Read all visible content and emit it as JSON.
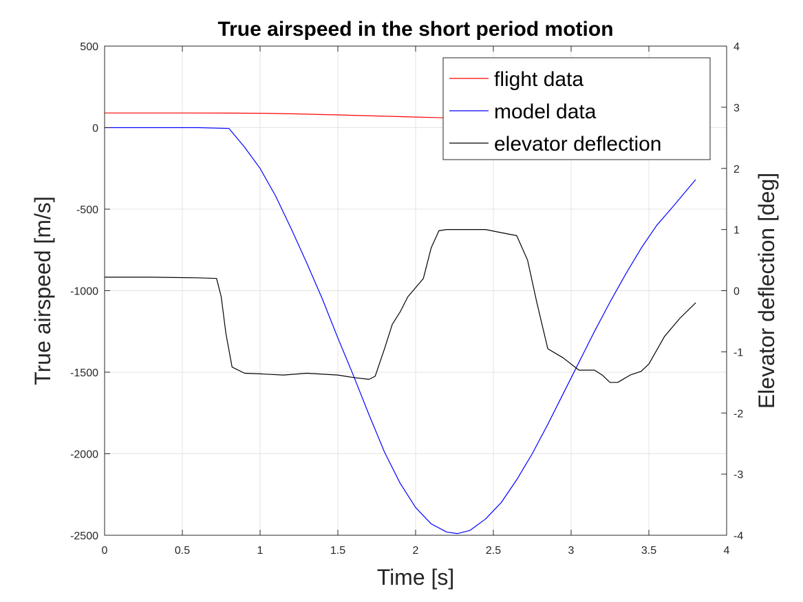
{
  "chart_data": {
    "type": "line",
    "title": "True airspeed in the short period motion",
    "xlabel": "Time [s]",
    "ylabel": "True airspeed [m/s]",
    "y2label": "Elevator deflection [deg]",
    "xlim": [
      0,
      4
    ],
    "ylim": [
      -2500,
      500
    ],
    "y2lim": [
      -4,
      4
    ],
    "xticks": [
      "0",
      "0.5",
      "1",
      "1.5",
      "2",
      "2.5",
      "3",
      "3.5",
      "4"
    ],
    "xtick_values": [
      0,
      0.5,
      1,
      1.5,
      2,
      2.5,
      3,
      3.5,
      4
    ],
    "yticks": [
      "500",
      "0",
      "-500",
      "-1000",
      "-1500",
      "-2000",
      "-2500"
    ],
    "ytick_values": [
      500,
      0,
      -500,
      -1000,
      -1500,
      -2000,
      -2500
    ],
    "y2ticks": [
      "4",
      "3",
      "2",
      "1",
      "0",
      "-1",
      "-2",
      "-3",
      "-4"
    ],
    "y2tick_values": [
      4,
      3,
      2,
      1,
      0,
      -1,
      -2,
      -3,
      -4
    ],
    "grid": true,
    "legend_position": "top-right",
    "series": [
      {
        "name": "flight data",
        "color": "#ff0000",
        "axis": "left",
        "x": [
          0,
          0.5,
          0.8,
          1.0,
          1.2,
          1.5,
          1.8,
          2.0,
          2.2
        ],
        "y": [
          90,
          90,
          89,
          88,
          85,
          78,
          70,
          65,
          60
        ]
      },
      {
        "name": "model data",
        "color": "#0000ff",
        "axis": "left",
        "x": [
          0,
          0.6,
          0.8,
          0.9,
          1.0,
          1.1,
          1.2,
          1.3,
          1.4,
          1.5,
          1.6,
          1.7,
          1.8,
          1.9,
          2.0,
          2.1,
          2.2,
          2.27,
          2.35,
          2.45,
          2.55,
          2.65,
          2.75,
          2.85,
          2.95,
          3.05,
          3.15,
          3.25,
          3.35,
          3.45,
          3.55,
          3.65,
          3.8
        ],
        "y": [
          0,
          0,
          -5,
          -120,
          -250,
          -420,
          -620,
          -830,
          -1050,
          -1290,
          -1520,
          -1760,
          -1990,
          -2180,
          -2330,
          -2430,
          -2480,
          -2490,
          -2470,
          -2400,
          -2300,
          -2160,
          -2000,
          -1820,
          -1630,
          -1440,
          -1250,
          -1070,
          -900,
          -740,
          -600,
          -490,
          -320
        ]
      },
      {
        "name": "elevator deflection",
        "color": "#000000",
        "axis": "right",
        "x": [
          0,
          0.3,
          0.6,
          0.72,
          0.75,
          0.78,
          0.82,
          0.9,
          1.0,
          1.15,
          1.3,
          1.5,
          1.6,
          1.7,
          1.74,
          1.8,
          1.85,
          1.9,
          1.95,
          2.0,
          2.05,
          2.1,
          2.15,
          2.2,
          2.3,
          2.45,
          2.55,
          2.65,
          2.72,
          2.78,
          2.85,
          2.95,
          3.05,
          3.15,
          3.2,
          3.25,
          3.3,
          3.38,
          3.45,
          3.5,
          3.6,
          3.7,
          3.8
        ],
        "y": [
          0.22,
          0.22,
          0.21,
          0.2,
          -0.1,
          -0.7,
          -1.25,
          -1.35,
          -1.36,
          -1.38,
          -1.35,
          -1.38,
          -1.42,
          -1.45,
          -1.4,
          -0.95,
          -0.55,
          -0.35,
          -0.1,
          0.05,
          0.2,
          0.7,
          0.98,
          1.0,
          1.0,
          1.0,
          0.95,
          0.9,
          0.5,
          -0.2,
          -0.95,
          -1.1,
          -1.3,
          -1.3,
          -1.38,
          -1.5,
          -1.5,
          -1.38,
          -1.32,
          -1.2,
          -0.75,
          -0.45,
          -0.2
        ]
      }
    ]
  }
}
